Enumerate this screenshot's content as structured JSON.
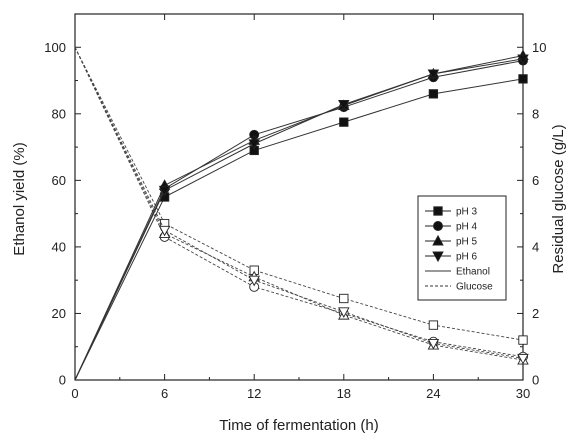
{
  "chart_data": {
    "type": "line",
    "title": "",
    "xlabel": "Time of fermentation (h)",
    "ylabel": "Ethanol yield (%)",
    "ylabel_right": "Residual glucose (g/L)",
    "x": [
      0,
      6,
      12,
      18,
      24,
      30
    ],
    "xlim": [
      0,
      30
    ],
    "ylim": [
      0,
      110
    ],
    "ylim_right": [
      0,
      11
    ],
    "x_ticks": [
      "0",
      "6",
      "12",
      "18",
      "24",
      "30"
    ],
    "y_ticks": [
      "0",
      "20",
      "40",
      "60",
      "80",
      "100"
    ],
    "y_ticks_right": [
      "0",
      "2",
      "4",
      "6",
      "8",
      "10"
    ],
    "grid": false,
    "legend_position": "center-right",
    "series": [
      {
        "name": "pH 3",
        "marker": "square",
        "ethanol": [
          0,
          55.0,
          69.0,
          77.5,
          86.0,
          90.5
        ],
        "glucose": [
          10.0,
          4.7,
          3.3,
          2.45,
          1.65,
          1.2
        ]
      },
      {
        "name": "pH 4",
        "marker": "circle",
        "ethanol": [
          0,
          57.5,
          73.7,
          82.0,
          91.0,
          96.0
        ],
        "glucose": [
          10.0,
          4.3,
          2.8,
          2.0,
          1.15,
          0.7
        ]
      },
      {
        "name": "pH 5",
        "marker": "triangle-up",
        "ethanol": [
          0,
          58.5,
          72.0,
          82.5,
          92.0,
          97.5
        ],
        "glucose": [
          10.0,
          4.4,
          3.1,
          1.95,
          1.05,
          0.6
        ]
      },
      {
        "name": "pH 6",
        "marker": "triangle-down",
        "ethanol": [
          0,
          57.0,
          71.0,
          82.8,
          92.0,
          96.5
        ],
        "glucose": [
          10.0,
          4.5,
          3.0,
          2.05,
          1.1,
          0.65
        ]
      }
    ],
    "legend_line_entries": [
      {
        "name": "Ethanol",
        "style": "solid"
      },
      {
        "name": "Glucose",
        "style": "dashed"
      }
    ]
  }
}
